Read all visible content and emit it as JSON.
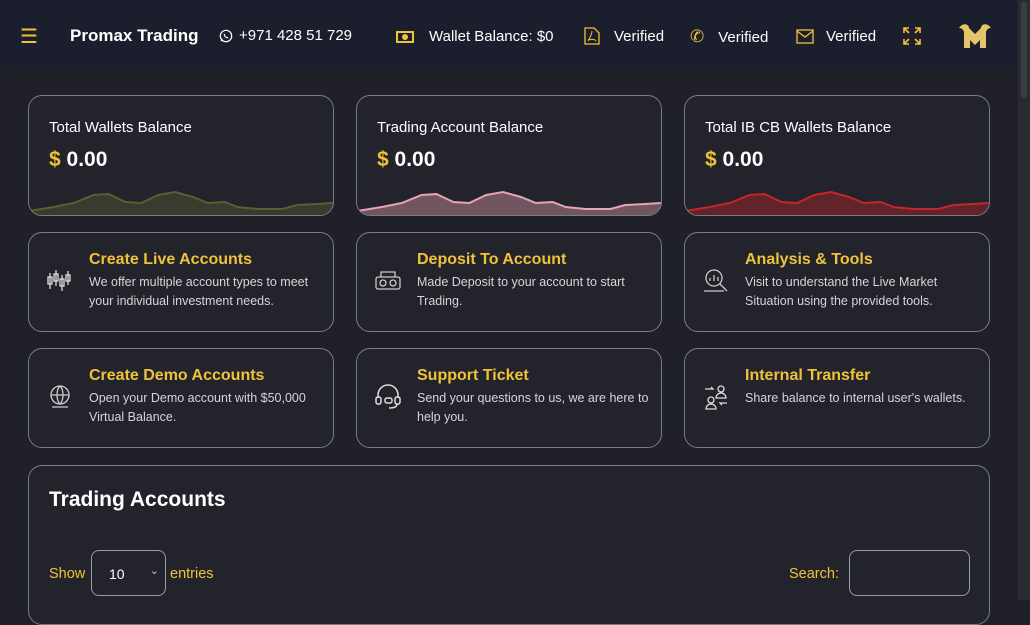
{
  "header": {
    "brand": "Promax Trading",
    "phone": "+971 428 51 729",
    "wallet_balance": "Wallet Balance: $0",
    "documents_status": "Verified",
    "phone_status": "Verified",
    "email_status": "Verified"
  },
  "balances": [
    {
      "title": "Total Wallets Balance",
      "currency": "$",
      "amount": "0.00",
      "color": "#5a5f32"
    },
    {
      "title": "Trading Account Balance",
      "currency": "$",
      "amount": "0.00",
      "color": "#e8a3b4"
    },
    {
      "title": "Total IB CB Wallets Balance",
      "currency": "$",
      "amount": "0.00",
      "color": "#c4262c"
    }
  ],
  "features": [
    {
      "title": "Create Live Accounts",
      "desc": "We offer multiple account types to meet your individual investment needs.",
      "icon": "candlestick-icon"
    },
    {
      "title": "Deposit To Account",
      "desc": "Made Deposit to your account to start Trading.",
      "icon": "money-icon"
    },
    {
      "title": "Analysis & Tools",
      "desc": "Visit to understand the Live Market Situation using the provided tools.",
      "icon": "analysis-icon"
    },
    {
      "title": "Create Demo Accounts",
      "desc": "Open your Demo account with $50,000 Virtual Balance.",
      "icon": "globe-icon"
    },
    {
      "title": "Support Ticket",
      "desc": "Send your questions to us, we are here to help you.",
      "icon": "headset-icon"
    },
    {
      "title": "Internal Transfer",
      "desc": "Share balance to internal user's wallets.",
      "icon": "transfer-icon"
    }
  ],
  "trading_accounts": {
    "title": "Trading Accounts",
    "show_label": "Show",
    "entries_value": "10",
    "entries_label": "entries",
    "search_label": "Search:",
    "search_value": ""
  },
  "colors": {
    "accent": "#f0c23a",
    "background": "#1f2028",
    "header": "#1b1e2c"
  }
}
